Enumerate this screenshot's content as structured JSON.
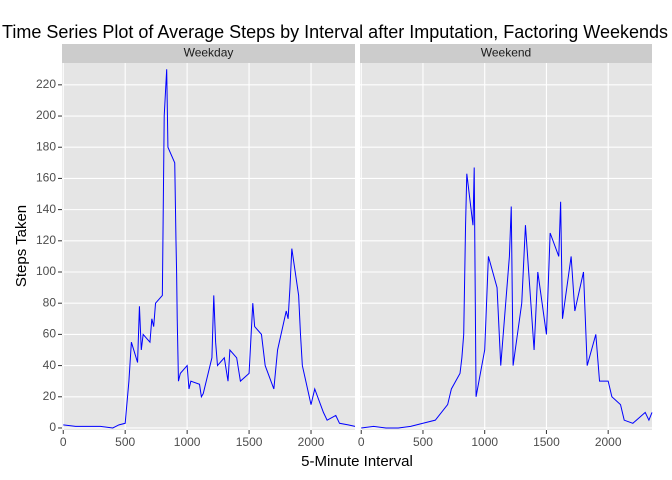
{
  "title": "Time Series Plot of Average Steps by Interval after Imputation, Factoring Weekends",
  "x_label": "5-Minute Interval",
  "y_label": "Steps Taken",
  "chart_data": [
    {
      "type": "line",
      "title": "Weekday",
      "color": "#0000ff",
      "grid": true,
      "x": [
        0,
        100,
        200,
        300,
        400,
        450,
        500,
        530,
        550,
        600,
        615,
        630,
        645,
        700,
        715,
        730,
        745,
        800,
        815,
        825,
        835,
        845,
        900,
        910,
        915,
        920,
        930,
        945,
        1000,
        1015,
        1030,
        1100,
        1115,
        1130,
        1200,
        1215,
        1230,
        1245,
        1300,
        1330,
        1345,
        1400,
        1430,
        1500,
        1530,
        1545,
        1600,
        1630,
        1700,
        1730,
        1800,
        1815,
        1830,
        1845,
        1900,
        1915,
        1930,
        2000,
        2030,
        2100,
        2130,
        2200,
        2230,
        2300,
        2355
      ],
      "values": [
        2,
        1,
        1,
        1,
        0,
        2,
        3,
        30,
        55,
        42,
        78,
        50,
        60,
        55,
        70,
        65,
        80,
        85,
        200,
        215,
        230,
        180,
        170,
        120,
        100,
        70,
        30,
        35,
        40,
        25,
        30,
        28,
        20,
        22,
        45,
        85,
        55,
        40,
        45,
        30,
        50,
        45,
        30,
        35,
        80,
        65,
        60,
        40,
        25,
        50,
        75,
        70,
        90,
        115,
        85,
        60,
        40,
        15,
        25,
        10,
        5,
        8,
        3,
        2,
        1
      ],
      "xlim": [
        -10,
        2355
      ],
      "ylim": [
        -1.3,
        234
      ],
      "xticks": [
        0,
        500,
        1000,
        1500,
        2000
      ],
      "yticks": [
        0,
        20,
        40,
        60,
        80,
        100,
        120,
        140,
        160,
        180,
        200,
        220
      ]
    },
    {
      "type": "line",
      "title": "Weekend",
      "color": "#0000ff",
      "grid": true,
      "x": [
        0,
        100,
        200,
        300,
        400,
        500,
        600,
        700,
        730,
        800,
        815,
        830,
        845,
        855,
        905,
        915,
        930,
        1000,
        1030,
        1100,
        1130,
        1200,
        1215,
        1230,
        1300,
        1330,
        1400,
        1430,
        1500,
        1530,
        1600,
        1615,
        1630,
        1700,
        1730,
        1800,
        1830,
        1900,
        1930,
        2000,
        2030,
        2100,
        2130,
        2200,
        2300,
        2330,
        2355
      ],
      "values": [
        0,
        1,
        0,
        0,
        1,
        3,
        5,
        15,
        25,
        35,
        45,
        60,
        130,
        163,
        130,
        167,
        20,
        50,
        110,
        90,
        40,
        110,
        142,
        40,
        80,
        130,
        50,
        100,
        60,
        125,
        110,
        145,
        70,
        110,
        75,
        100,
        40,
        60,
        30,
        30,
        20,
        15,
        5,
        3,
        10,
        5,
        10
      ],
      "xlim": [
        -10,
        2355
      ],
      "ylim": [
        -1.3,
        234
      ],
      "xticks": [
        0,
        500,
        1000,
        1500,
        2000
      ],
      "yticks": [
        0,
        20,
        40,
        60,
        80,
        100,
        120,
        140,
        160,
        180,
        200,
        220
      ]
    }
  ]
}
